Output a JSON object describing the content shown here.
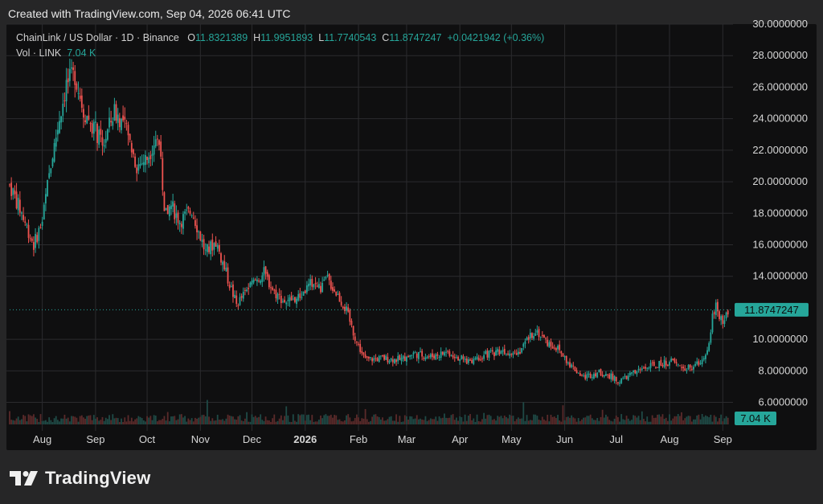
{
  "header": {
    "created_text": "Created with TradingView.com, Sep 04, 2026 06:41 UTC"
  },
  "legend": {
    "symbol": "ChainLink / US Dollar · 1D · Binance",
    "o_label": "O",
    "o_value": "11.8321389",
    "h_label": "H",
    "h_value": "11.9951893",
    "l_label": "L",
    "l_value": "11.7740543",
    "c_label": "C",
    "c_value": "11.8747247",
    "change": "+0.0421942 (+0.36%)",
    "vol_label": "Vol · LINK",
    "vol_value": "7.04 K"
  },
  "footer": {
    "brand": "TradingView"
  },
  "colors": {
    "up": "#26a69a",
    "down": "#ef5350",
    "grid": "#2b2b2e",
    "background": "#0f0f10",
    "badge": "#26a69a"
  },
  "chart_data": {
    "type": "candlestick",
    "title": "ChainLink / US Dollar · 1D · Binance",
    "ylim": [
      4.6,
      30.0
    ],
    "y_ticks": [
      {
        "v": 30,
        "label": "30.0000000"
      },
      {
        "v": 28,
        "label": "28.0000000"
      },
      {
        "v": 26,
        "label": "26.0000000"
      },
      {
        "v": 24,
        "label": "24.0000000"
      },
      {
        "v": 22,
        "label": "22.0000000"
      },
      {
        "v": 20,
        "label": "20.0000000"
      },
      {
        "v": 18,
        "label": "18.0000000"
      },
      {
        "v": 16,
        "label": "16.0000000"
      },
      {
        "v": 14,
        "label": "14.0000000"
      },
      {
        "v": 10,
        "label": "10.0000000"
      },
      {
        "v": 8,
        "label": "8.0000000"
      },
      {
        "v": 6,
        "label": "6.0000000"
      }
    ],
    "x_range": [
      "2025-07-13",
      "2026-09-06"
    ],
    "x_ticks": [
      {
        "date": "2025-08-01",
        "label": "Aug",
        "bold": false
      },
      {
        "date": "2025-09-01",
        "label": "Sep",
        "bold": false
      },
      {
        "date": "2025-10-01",
        "label": "Oct",
        "bold": false
      },
      {
        "date": "2025-11-01",
        "label": "Nov",
        "bold": false
      },
      {
        "date": "2025-12-01",
        "label": "Dec",
        "bold": false
      },
      {
        "date": "2026-01-01",
        "label": "2026",
        "bold": true
      },
      {
        "date": "2026-02-01",
        "label": "Feb",
        "bold": false
      },
      {
        "date": "2026-03-01",
        "label": "Mar",
        "bold": false
      },
      {
        "date": "2026-04-01",
        "label": "Apr",
        "bold": false
      },
      {
        "date": "2026-05-01",
        "label": "May",
        "bold": false
      },
      {
        "date": "2026-06-01",
        "label": "Jun",
        "bold": false
      },
      {
        "date": "2026-07-01",
        "label": "Jul",
        "bold": false
      },
      {
        "date": "2026-08-01",
        "label": "Aug",
        "bold": false
      },
      {
        "date": "2026-09-01",
        "label": "Sep",
        "bold": false
      }
    ],
    "last_price": 11.8747247,
    "last_price_label": "11.8747247",
    "volume_label": "7.04 K",
    "close_path": [
      {
        "date": "2025-07-13",
        "close": 19.8
      },
      {
        "date": "2025-07-20",
        "close": 18.0
      },
      {
        "date": "2025-07-27",
        "close": 16.0
      },
      {
        "date": "2025-08-01",
        "close": 17.5
      },
      {
        "date": "2025-08-05",
        "close": 20.5
      },
      {
        "date": "2025-08-10",
        "close": 23.5
      },
      {
        "date": "2025-08-15",
        "close": 26.2
      },
      {
        "date": "2025-08-20",
        "close": 26.8
      },
      {
        "date": "2025-08-25",
        "close": 24.5
      },
      {
        "date": "2025-08-31",
        "close": 23.5
      },
      {
        "date": "2025-09-05",
        "close": 22.2
      },
      {
        "date": "2025-09-12",
        "close": 24.5
      },
      {
        "date": "2025-09-18",
        "close": 23.5
      },
      {
        "date": "2025-09-25",
        "close": 21.0
      },
      {
        "date": "2025-10-01",
        "close": 21.5
      },
      {
        "date": "2025-10-06",
        "close": 22.8
      },
      {
        "date": "2025-10-09",
        "close": 22.2
      },
      {
        "date": "2025-10-10",
        "close": 19.0
      },
      {
        "date": "2025-10-11",
        "close": 17.8
      },
      {
        "date": "2025-10-15",
        "close": 18.5
      },
      {
        "date": "2025-10-20",
        "close": 17.5
      },
      {
        "date": "2025-10-27",
        "close": 18.2
      },
      {
        "date": "2025-11-04",
        "close": 15.5
      },
      {
        "date": "2025-11-10",
        "close": 16.2
      },
      {
        "date": "2025-11-18",
        "close": 13.5
      },
      {
        "date": "2025-11-22",
        "close": 12.2
      },
      {
        "date": "2025-12-01",
        "close": 13.5
      },
      {
        "date": "2025-12-08",
        "close": 14.2
      },
      {
        "date": "2025-12-14",
        "close": 13.0
      },
      {
        "date": "2025-12-20",
        "close": 12.4
      },
      {
        "date": "2025-12-28",
        "close": 12.6
      },
      {
        "date": "2026-01-05",
        "close": 13.6
      },
      {
        "date": "2026-01-10",
        "close": 13.2
      },
      {
        "date": "2026-01-14",
        "close": 13.8
      },
      {
        "date": "2026-01-20",
        "close": 12.8
      },
      {
        "date": "2026-01-25",
        "close": 11.8
      },
      {
        "date": "2026-01-31",
        "close": 9.8
      },
      {
        "date": "2026-02-05",
        "close": 8.7
      },
      {
        "date": "2026-02-15",
        "close": 8.8
      },
      {
        "date": "2026-02-25",
        "close": 8.7
      },
      {
        "date": "2026-03-05",
        "close": 9.1
      },
      {
        "date": "2026-03-15",
        "close": 8.9
      },
      {
        "date": "2026-03-25",
        "close": 9.2
      },
      {
        "date": "2026-04-05",
        "close": 8.6
      },
      {
        "date": "2026-04-15",
        "close": 9.0
      },
      {
        "date": "2026-04-25",
        "close": 9.3
      },
      {
        "date": "2026-05-05",
        "close": 9.2
      },
      {
        "date": "2026-05-10",
        "close": 9.9
      },
      {
        "date": "2026-05-15",
        "close": 10.6
      },
      {
        "date": "2026-05-22",
        "close": 9.8
      },
      {
        "date": "2026-05-28",
        "close": 9.4
      },
      {
        "date": "2026-06-05",
        "close": 8.3
      },
      {
        "date": "2026-06-12",
        "close": 7.6
      },
      {
        "date": "2026-06-20",
        "close": 7.9
      },
      {
        "date": "2026-06-26",
        "close": 7.8
      },
      {
        "date": "2026-07-02",
        "close": 7.3
      },
      {
        "date": "2026-07-10",
        "close": 7.8
      },
      {
        "date": "2026-07-18",
        "close": 8.2
      },
      {
        "date": "2026-07-26",
        "close": 8.4
      },
      {
        "date": "2026-08-02",
        "close": 8.6
      },
      {
        "date": "2026-08-10",
        "close": 8.1
      },
      {
        "date": "2026-08-16",
        "close": 8.3
      },
      {
        "date": "2026-08-20",
        "close": 8.7
      },
      {
        "date": "2026-08-24",
        "close": 9.8
      },
      {
        "date": "2026-08-26",
        "close": 11.5
      },
      {
        "date": "2026-08-28",
        "close": 12.2
      },
      {
        "date": "2026-08-30",
        "close": 11.4
      },
      {
        "date": "2026-09-01",
        "close": 11.2
      },
      {
        "date": "2026-09-04",
        "close": 11.87
      }
    ]
  }
}
